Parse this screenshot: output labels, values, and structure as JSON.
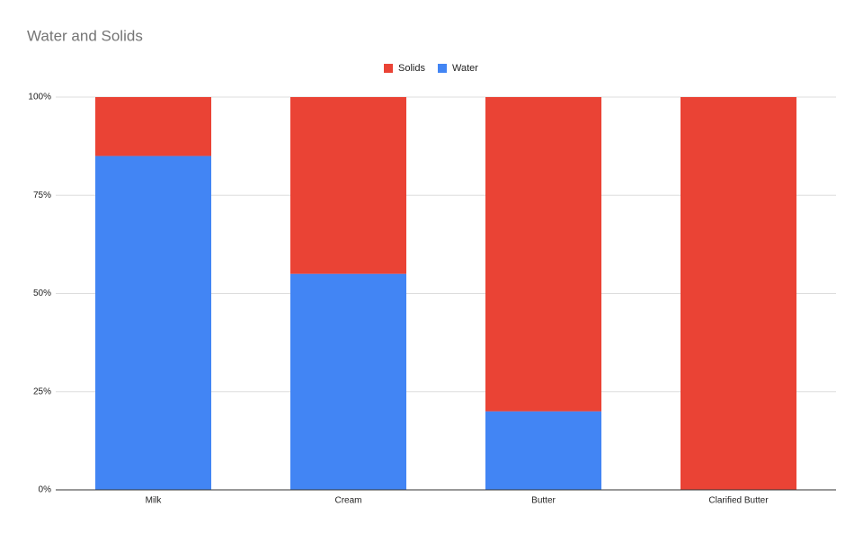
{
  "chart_data": {
    "type": "stacked_bar_100",
    "title": "Water and Solids",
    "categories": [
      "Milk",
      "Cream",
      "Butter",
      "Clarified Butter"
    ],
    "series": [
      {
        "name": "Solids",
        "color": "#ea4335",
        "values": [
          15,
          45,
          80,
          100
        ]
      },
      {
        "name": "Water",
        "color": "#4285f4",
        "values": [
          85,
          55,
          20,
          0
        ]
      }
    ],
    "ylim": [
      0,
      100
    ],
    "yticks": [
      {
        "value": 0,
        "label": "0%"
      },
      {
        "value": 25,
        "label": "25%"
      },
      {
        "value": 50,
        "label": "50%"
      },
      {
        "value": 75,
        "label": "75%"
      },
      {
        "value": 100,
        "label": "100%"
      }
    ],
    "grid": true,
    "legend": "top"
  }
}
